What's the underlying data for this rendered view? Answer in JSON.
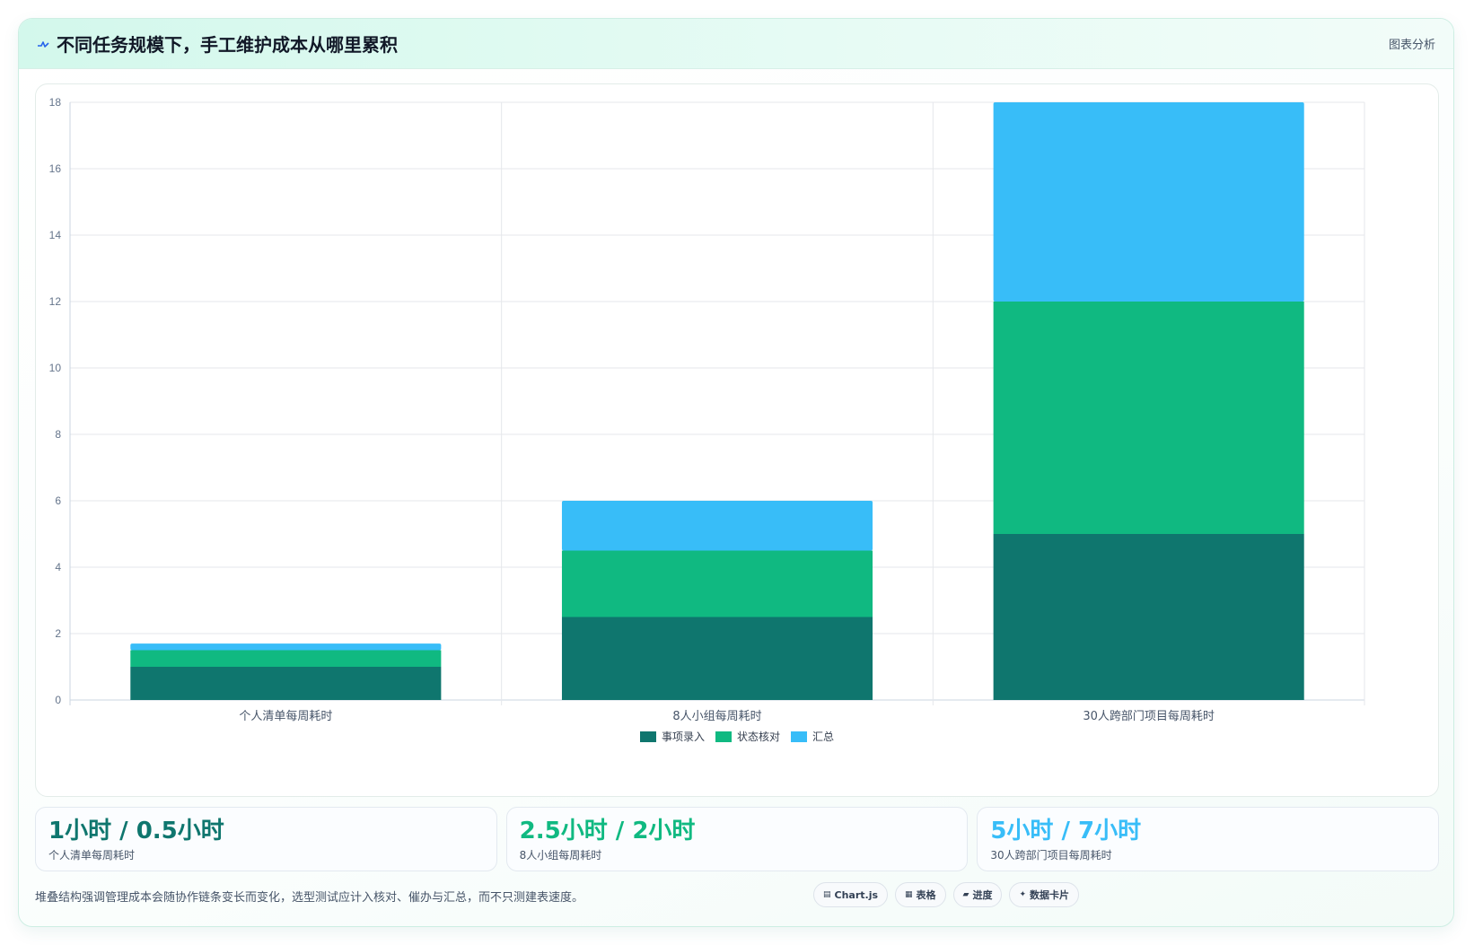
{
  "header": {
    "icon": "pulse-icon",
    "title": "不同任务规模下，手工维护成本从哪里累积",
    "link": "图表分析"
  },
  "colors": {
    "entry": "#0f766e",
    "check": "#10b981",
    "summary": "#38bdf8"
  },
  "chart_data": {
    "type": "bar",
    "stacked": true,
    "categories": [
      "个人清单每周耗时",
      "8人小组每周耗时",
      "30人跨部门项目每周耗时"
    ],
    "series": [
      {
        "name": "事项录入",
        "values": [
          1,
          2.5,
          5
        ],
        "color": "#0f766e"
      },
      {
        "name": "状态核对",
        "values": [
          0.5,
          2,
          7
        ],
        "color": "#10b981"
      },
      {
        "name": "汇总",
        "values": [
          0.2,
          1.5,
          6
        ],
        "color": "#38bdf8"
      }
    ],
    "ylim": [
      0,
      18
    ],
    "yticks": [
      0,
      2,
      4,
      6,
      8,
      10,
      12,
      14,
      16,
      18
    ],
    "grid": true,
    "legend": "bottom"
  },
  "stats": [
    {
      "value": "1小时 / 0.5小时",
      "label": "个人清单每周耗时",
      "color": "#0f766e"
    },
    {
      "value": "2.5小时 / 2小时",
      "label": "8人小组每周耗时",
      "color": "#10b981"
    },
    {
      "value": "5小时 / 7小时",
      "label": "30人跨部门项目每周耗时",
      "color": "#38bdf8"
    }
  ],
  "footer": {
    "note": "堆叠结构强调管理成本会随协作链条变长而变化，选型测试应计入核对、催办与汇总，而不只测建表速度。",
    "chips": [
      {
        "icon": "chart-icon",
        "glyph": "▤",
        "label": "Chart.js"
      },
      {
        "icon": "table-icon",
        "glyph": "▦",
        "label": "表格"
      },
      {
        "icon": "progress-icon",
        "glyph": "▰",
        "label": "进度"
      },
      {
        "icon": "sparkle-icon",
        "glyph": "✦",
        "label": "数据卡片"
      }
    ]
  }
}
